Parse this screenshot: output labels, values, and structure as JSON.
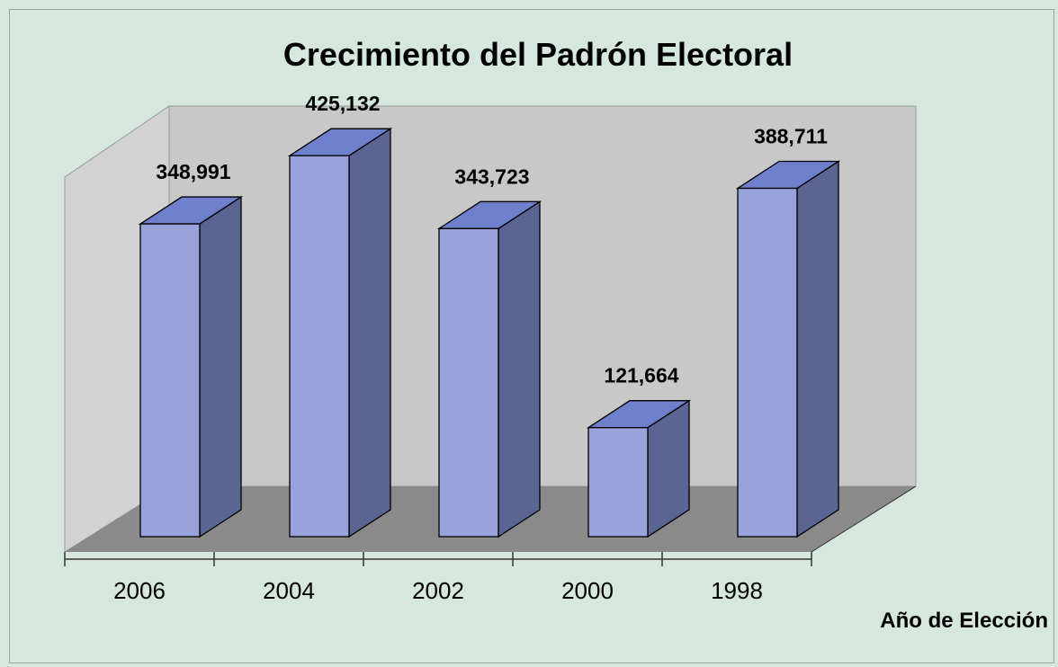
{
  "chart_data": {
    "type": "bar",
    "title": "Crecimiento del Padrón Electoral",
    "xlabel": "Año de Elección",
    "ylabel": "",
    "categories": [
      "2006",
      "2004",
      "2002",
      "2000",
      "1998"
    ],
    "values": [
      348991,
      425132,
      343723,
      121664,
      388711
    ],
    "value_labels": [
      "348,991",
      "425,132",
      "343,723",
      "121,664",
      "388,711"
    ],
    "ylim": [
      0,
      450000
    ],
    "grid": false,
    "three_d": true,
    "legend": "none",
    "colors": {
      "background": "#d6e8dd",
      "back_wall": "#c8c8c8",
      "side_wall": "#d2d2d2",
      "floor": "#8a8a8a",
      "bar_front": "#97a3da",
      "bar_side": "#5a6594",
      "bar_top": "#6e80cc"
    }
  }
}
